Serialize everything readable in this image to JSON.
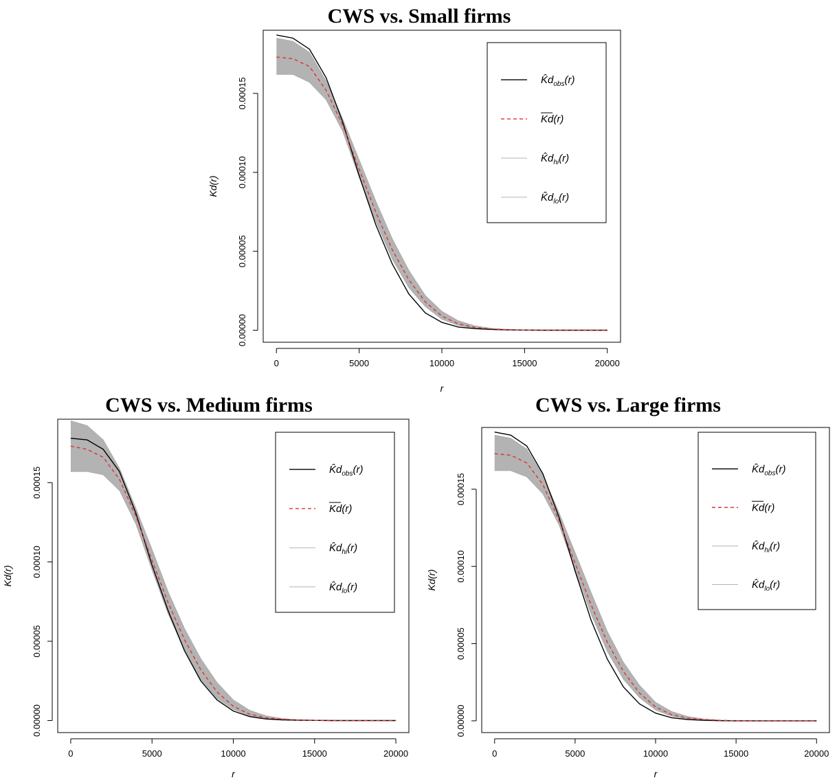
{
  "figure_colors": {
    "observed": "#000000",
    "mean": "#e03030",
    "envelope_fill": "#b3b3b3",
    "envelope_line": "#a8a8a8"
  },
  "legend_entries": [
    {
      "main": "K̂d",
      "sub": "obs",
      "tail": "(r)",
      "style": "solid-black"
    },
    {
      "main": "Kd",
      "sub": "",
      "tail": "(r)",
      "style": "dashed-red",
      "overline": true
    },
    {
      "main": "K̂d",
      "sub": "hi",
      "tail": "(r)",
      "style": "solid-gray"
    },
    {
      "main": "K̂d",
      "sub": "lo",
      "tail": "(r)",
      "style": "solid-gray"
    }
  ],
  "chart_data": [
    {
      "type": "line",
      "title": "CWS vs. Small firms",
      "xlabel": "r",
      "ylabel": "Kd(r)",
      "xlim": [
        0,
        20000
      ],
      "ylim": [
        0,
        0.00019
      ],
      "x_ticks": [
        "0",
        "5000",
        "10000",
        "15000",
        "20000"
      ],
      "y_ticks": [
        "0.00000",
        "0.00005",
        "0.00010",
        "0.00015"
      ],
      "legend_position": "top-right",
      "x": [
        0,
        1000,
        2000,
        3000,
        4000,
        5000,
        6000,
        7000,
        8000,
        9000,
        10000,
        11000,
        12000,
        13000,
        14000,
        15000,
        16000,
        17000,
        18000,
        19000,
        20000
      ],
      "series": [
        {
          "name": "K̂d_obs(r)",
          "values": [
            0.000187,
            0.000185,
            0.000178,
            0.00016,
            0.000132,
            9.8e-05,
            6.7e-05,
            4.2e-05,
            2.3e-05,
            1.1e-05,
            5e-06,
            2e-06,
            1e-06,
            5e-07,
            2e-07,
            1e-07,
            0,
            0,
            0,
            0,
            0
          ]
        },
        {
          "name": "Kd(r)",
          "values": [
            0.000173,
            0.000172,
            0.000167,
            0.000152,
            0.00013,
            0.000102,
            7.5e-05,
            5.1e-05,
            3.2e-05,
            1.8e-05,
            9e-06,
            4e-06,
            1.8e-06,
            8e-07,
            3e-07,
            1e-07,
            0,
            0,
            0,
            0,
            0
          ]
        },
        {
          "name": "K̂d_hi(r)",
          "values": [
            0.000185,
            0.000183,
            0.000176,
            0.000158,
            0.000134,
            0.000108,
            8.2e-05,
            5.8e-05,
            3.8e-05,
            2.2e-05,
            1.2e-05,
            6e-06,
            2.8e-06,
            1.2e-06,
            5e-07,
            2e-07,
            1e-07,
            0,
            0,
            0,
            0
          ]
        },
        {
          "name": "K̂d_lo(r)",
          "values": [
            0.000162,
            0.000162,
            0.000157,
            0.000146,
            0.000126,
            9.7e-05,
            6.9e-05,
            4.5e-05,
            2.7e-05,
            1.5e-05,
            7e-06,
            3e-06,
            1.2e-06,
            5e-07,
            2e-07,
            1e-07,
            0,
            0,
            0,
            0,
            0
          ]
        }
      ]
    },
    {
      "type": "line",
      "title": "CWS vs. Medium firms",
      "xlabel": "r",
      "ylabel": "Kd(r)",
      "xlim": [
        0,
        20000
      ],
      "ylim": [
        0,
        0.00019
      ],
      "x_ticks": [
        "0",
        "5000",
        "10000",
        "15000",
        "20000"
      ],
      "y_ticks": [
        "0.00000",
        "0.00005",
        "0.00010",
        "0.00015"
      ],
      "legend_position": "top-right",
      "x": [
        0,
        1000,
        2000,
        3000,
        4000,
        5000,
        6000,
        7000,
        8000,
        9000,
        10000,
        11000,
        12000,
        13000,
        14000,
        15000,
        16000,
        17000,
        18000,
        19000,
        20000
      ],
      "series": [
        {
          "name": "K̂d_obs(r)",
          "values": [
            0.000178,
            0.000177,
            0.000171,
            0.000157,
            0.000131,
            9.8e-05,
            6.9e-05,
            4.4e-05,
            2.5e-05,
            1.3e-05,
            6e-06,
            2.5e-06,
            1e-06,
            4e-07,
            2e-07,
            1e-07,
            0,
            0,
            0,
            0,
            0
          ]
        },
        {
          "name": "Kd(r)",
          "values": [
            0.000173,
            0.000171,
            0.000166,
            0.000152,
            0.000129,
            0.000101,
            7.4e-05,
            5.1e-05,
            3.2e-05,
            1.8e-05,
            9e-06,
            4e-06,
            1.8e-06,
            8e-07,
            3e-07,
            1e-07,
            0,
            0,
            0,
            0,
            0
          ]
        },
        {
          "name": "K̂d_hi(r)",
          "values": [
            0.000189,
            0.000186,
            0.000177,
            0.000159,
            0.000134,
            0.000108,
            8.1e-05,
            5.8e-05,
            3.9e-05,
            2.4e-05,
            1.3e-05,
            6.5e-06,
            3e-06,
            1.3e-06,
            5e-07,
            2e-07,
            1e-07,
            0,
            0,
            0,
            0
          ]
        },
        {
          "name": "K̂d_lo(r)",
          "values": [
            0.000157,
            0.000157,
            0.000155,
            0.000145,
            0.000124,
            9.5e-05,
            6.7e-05,
            4.4e-05,
            2.6e-05,
            1.4e-05,
            7e-06,
            3e-06,
            1.2e-06,
            5e-07,
            2e-07,
            1e-07,
            0,
            0,
            0,
            0,
            0
          ]
        }
      ]
    },
    {
      "type": "line",
      "title": "CWS vs. Large firms",
      "xlabel": "r",
      "ylabel": "Kd(r)",
      "xlim": [
        0,
        20000
      ],
      "ylim": [
        0,
        0.00019
      ],
      "x_ticks": [
        "0",
        "5000",
        "10000",
        "15000",
        "20000"
      ],
      "y_ticks": [
        "0.00000",
        "0.00005",
        "0.00010",
        "0.00015"
      ],
      "legend_position": "top-right",
      "x": [
        0,
        1000,
        2000,
        3000,
        4000,
        5000,
        6000,
        7000,
        8000,
        9000,
        10000,
        11000,
        12000,
        13000,
        14000,
        15000,
        16000,
        17000,
        18000,
        19000,
        20000
      ],
      "series": [
        {
          "name": "K̂d_obs(r)",
          "values": [
            0.000187,
            0.000185,
            0.000178,
            0.00016,
            0.000132,
            9.7e-05,
            6.5e-05,
            4e-05,
            2.2e-05,
            1.1e-05,
            5e-06,
            2e-06,
            8e-07,
            3e-07,
            1e-07,
            0,
            0,
            0,
            0,
            0,
            0
          ]
        },
        {
          "name": "Kd(r)",
          "values": [
            0.000173,
            0.000172,
            0.000167,
            0.000153,
            0.00013,
            0.000102,
            7.5e-05,
            5.1e-05,
            3.2e-05,
            1.8e-05,
            9e-06,
            4e-06,
            1.8e-06,
            8e-07,
            3e-07,
            1e-07,
            0,
            0,
            0,
            0,
            0
          ]
        },
        {
          "name": "K̂d_hi(r)",
          "values": [
            0.000185,
            0.000183,
            0.000176,
            0.000159,
            0.000135,
            0.000109,
            8.3e-05,
            5.8e-05,
            3.8e-05,
            2.3e-05,
            1.2e-05,
            6e-06,
            2.8e-06,
            1.2e-06,
            5e-07,
            2e-07,
            1e-07,
            0,
            0,
            0,
            0
          ]
        },
        {
          "name": "K̂d_lo(r)",
          "values": [
            0.000162,
            0.000162,
            0.000158,
            0.000147,
            0.000127,
            9.8e-05,
            6.9e-05,
            4.5e-05,
            2.7e-05,
            1.5e-05,
            7e-06,
            3e-06,
            1.2e-06,
            5e-07,
            2e-07,
            1e-07,
            0,
            0,
            0,
            0,
            0
          ]
        }
      ]
    }
  ]
}
